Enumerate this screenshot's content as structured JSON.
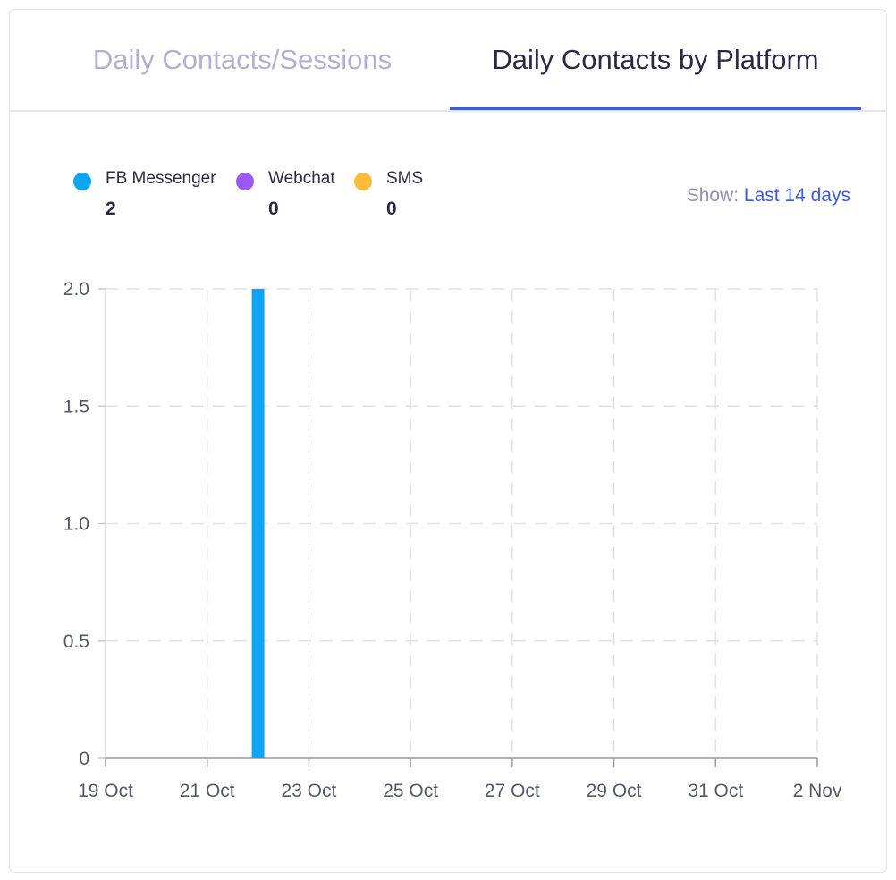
{
  "tabs": [
    {
      "label": "Daily Contacts/Sessions",
      "active": false
    },
    {
      "label": "Daily Contacts by Platform",
      "active": true
    }
  ],
  "legend": [
    {
      "name": "FB Messenger",
      "count": "2",
      "color": "#0ea5f5"
    },
    {
      "name": "Webchat",
      "count": "0",
      "color": "#9b59f5"
    },
    {
      "name": "SMS",
      "count": "0",
      "color": "#fbbc3c"
    }
  ],
  "show": {
    "label": "Show:",
    "value": "Last 14 days"
  },
  "chart_data": {
    "type": "bar",
    "xlabel": "",
    "ylabel": "",
    "ylim": [
      0,
      2
    ],
    "y_ticks": [
      0,
      0.5,
      1.0,
      1.5,
      2.0
    ],
    "y_tick_labels": [
      "0",
      "0.5",
      "1.0",
      "1.5",
      "2.0"
    ],
    "x_start": "2023-10-19",
    "x_end": "2023-11-02",
    "x_ticks": [
      "2023-10-19",
      "2023-10-21",
      "2023-10-23",
      "2023-10-25",
      "2023-10-27",
      "2023-10-29",
      "2023-10-31",
      "2023-11-02"
    ],
    "x_tick_labels": [
      "19 Oct",
      "21 Oct",
      "23 Oct",
      "25 Oct",
      "27 Oct",
      "29 Oct",
      "31 Oct",
      "2 Nov"
    ],
    "grid": true,
    "legend_position": "top-left",
    "series": [
      {
        "name": "FB Messenger",
        "color": "#0ea5f5",
        "points": [
          {
            "x": "2023-10-22",
            "y": 2
          }
        ]
      },
      {
        "name": "Webchat",
        "color": "#9b59f5",
        "points": []
      },
      {
        "name": "SMS",
        "color": "#fbbc3c",
        "points": []
      }
    ]
  }
}
